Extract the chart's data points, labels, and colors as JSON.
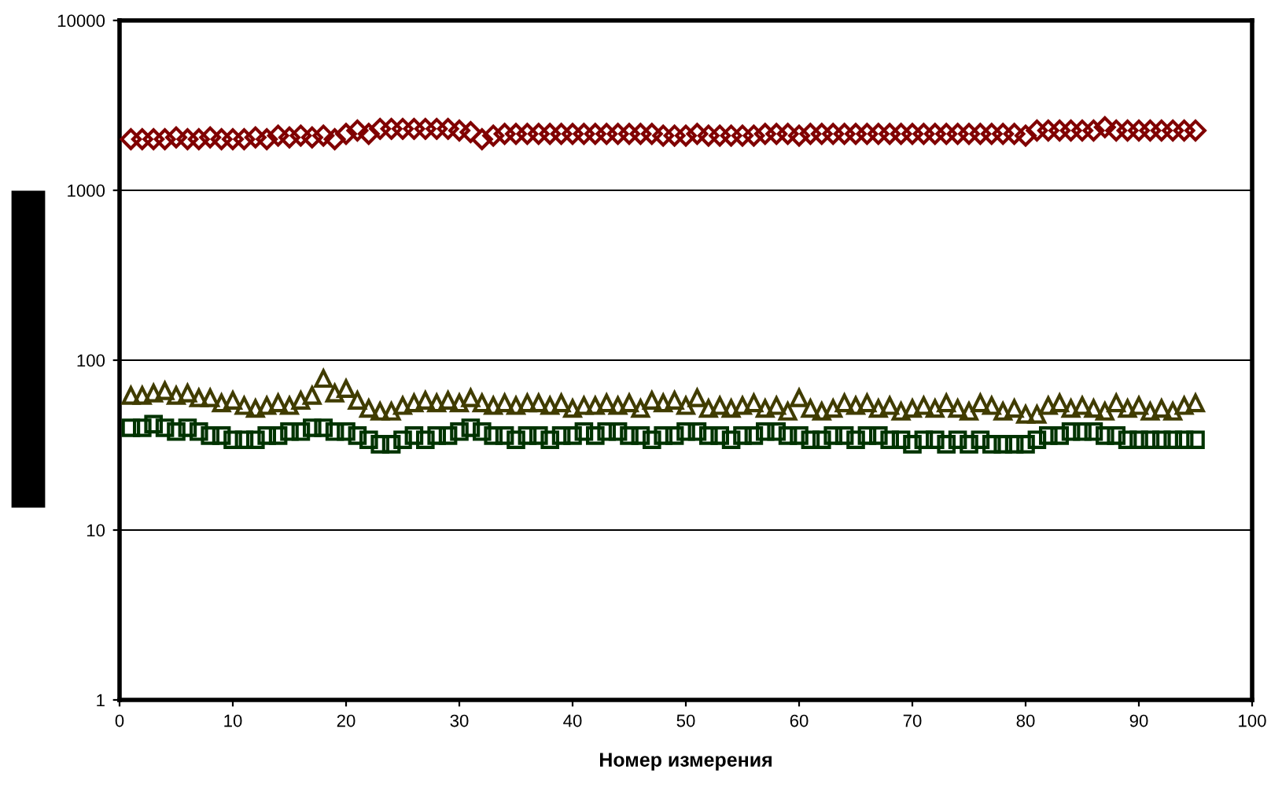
{
  "chart_data": {
    "type": "scatter",
    "xlabel": "Номер измерения",
    "xlim": [
      0,
      100
    ],
    "xticks": [
      0,
      10,
      20,
      30,
      40,
      50,
      60,
      70,
      80,
      90,
      100
    ],
    "log": true,
    "ylim": [
      1,
      10000
    ],
    "yticks": [
      1,
      10,
      100,
      1000,
      10000
    ],
    "grid": "y",
    "legend": false,
    "x": [
      1,
      2,
      3,
      4,
      5,
      6,
      7,
      8,
      9,
      10,
      11,
      12,
      13,
      14,
      15,
      16,
      17,
      18,
      19,
      20,
      21,
      22,
      23,
      24,
      25,
      26,
      27,
      28,
      29,
      30,
      31,
      32,
      33,
      34,
      35,
      36,
      37,
      38,
      39,
      40,
      41,
      42,
      43,
      44,
      45,
      46,
      47,
      48,
      49,
      50,
      51,
      52,
      53,
      54,
      55,
      56,
      57,
      58,
      59,
      60,
      61,
      62,
      63,
      64,
      65,
      66,
      67,
      68,
      69,
      70,
      71,
      72,
      73,
      74,
      75,
      76,
      77,
      78,
      79,
      80,
      81,
      82,
      83,
      84,
      85,
      86,
      87,
      88,
      89,
      90,
      91,
      92,
      93,
      94,
      95
    ],
    "series": [
      {
        "color": "#800000",
        "marker": "diamond",
        "values": [
          2000,
          2000,
          2000,
          2000,
          2050,
          2000,
          2000,
          2050,
          2000,
          2000,
          2000,
          2050,
          2000,
          2100,
          2050,
          2100,
          2050,
          2100,
          2000,
          2150,
          2250,
          2150,
          2300,
          2300,
          2300,
          2300,
          2300,
          2300,
          2300,
          2250,
          2200,
          2000,
          2100,
          2150,
          2150,
          2150,
          2150,
          2150,
          2150,
          2150,
          2150,
          2150,
          2150,
          2150,
          2150,
          2150,
          2150,
          2100,
          2100,
          2100,
          2150,
          2100,
          2100,
          2100,
          2100,
          2100,
          2150,
          2150,
          2150,
          2100,
          2150,
          2150,
          2150,
          2150,
          2150,
          2150,
          2150,
          2150,
          2150,
          2150,
          2150,
          2150,
          2150,
          2150,
          2150,
          2150,
          2150,
          2150,
          2150,
          2100,
          2250,
          2250,
          2250,
          2250,
          2250,
          2250,
          2350,
          2250,
          2250,
          2250,
          2250,
          2250,
          2250,
          2250,
          2250
        ]
      },
      {
        "color": "#403c00",
        "marker": "triangle",
        "values": [
          62,
          62,
          64,
          66,
          62,
          64,
          60,
          60,
          56,
          58,
          54,
          52,
          54,
          56,
          54,
          58,
          62,
          78,
          64,
          68,
          58,
          52,
          50,
          50,
          54,
          56,
          58,
          56,
          58,
          56,
          60,
          56,
          54,
          56,
          54,
          56,
          56,
          54,
          56,
          52,
          54,
          54,
          56,
          54,
          56,
          52,
          58,
          56,
          58,
          54,
          60,
          52,
          54,
          52,
          54,
          56,
          52,
          54,
          50,
          60,
          52,
          50,
          52,
          56,
          54,
          56,
          52,
          54,
          50,
          52,
          54,
          52,
          56,
          52,
          50,
          56,
          54,
          50,
          52,
          48,
          48,
          54,
          56,
          52,
          54,
          52,
          50,
          56,
          52,
          54,
          50,
          52,
          50,
          54,
          56
        ]
      },
      {
        "color": "#003300",
        "marker": "square",
        "values": [
          40,
          40,
          42,
          40,
          38,
          40,
          38,
          36,
          36,
          34,
          34,
          34,
          36,
          36,
          38,
          38,
          40,
          40,
          38,
          38,
          36,
          34,
          32,
          32,
          34,
          36,
          34,
          36,
          36,
          38,
          40,
          38,
          36,
          36,
          34,
          36,
          36,
          34,
          36,
          36,
          38,
          36,
          38,
          38,
          36,
          36,
          34,
          36,
          36,
          38,
          38,
          36,
          36,
          34,
          36,
          36,
          38,
          38,
          36,
          36,
          34,
          34,
          36,
          36,
          34,
          36,
          36,
          34,
          34,
          32,
          34,
          34,
          32,
          34,
          32,
          34,
          32,
          32,
          32,
          32,
          34,
          36,
          36,
          38,
          38,
          38,
          36,
          36,
          34,
          34,
          34,
          34,
          34,
          34,
          34
        ]
      }
    ]
  }
}
